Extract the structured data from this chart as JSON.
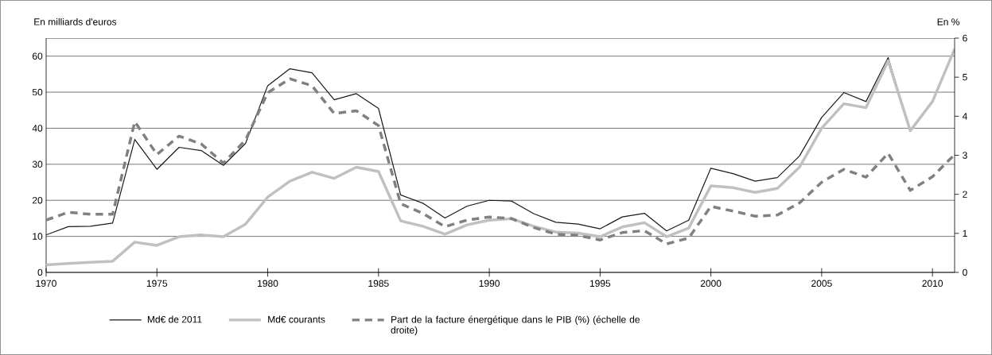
{
  "chart_data": {
    "type": "line",
    "ylabel": "En milliards d'euros",
    "y2label": "En %",
    "x": [
      1970,
      1971,
      1972,
      1973,
      1974,
      1975,
      1976,
      1977,
      1978,
      1979,
      1980,
      1981,
      1982,
      1983,
      1984,
      1985,
      1986,
      1987,
      1988,
      1989,
      1990,
      1991,
      1992,
      1993,
      1994,
      1995,
      1996,
      1997,
      1998,
      1999,
      2000,
      2001,
      2002,
      2003,
      2004,
      2005,
      2006,
      2007,
      2008,
      2009,
      2010,
      2011
    ],
    "series": [
      {
        "name": "Md€ de 2011",
        "color": "#1a1a1a",
        "line_style": "solid",
        "values": [
          10.4,
          12.7,
          12.8,
          13.7,
          36.9,
          28.6,
          34.7,
          33.8,
          29.7,
          35.8,
          51.8,
          56.5,
          55.4,
          47.9,
          49.6,
          45.5,
          21.5,
          19.2,
          15.1,
          18.4,
          20.0,
          19.8,
          16.3,
          13.9,
          13.4,
          12.1,
          15.4,
          16.4,
          11.5,
          14.5,
          28.9,
          27.4,
          25.3,
          26.3,
          32.3,
          43.0,
          49.9,
          47.4,
          59.6,
          39.3,
          null,
          null
        ]
      },
      {
        "name": "Md€ courants",
        "color": "#c0c0c0",
        "line_style": "solid",
        "values": [
          2.1,
          2.5,
          2.8,
          3.1,
          8.4,
          7.5,
          9.9,
          10.4,
          9.9,
          13.4,
          20.9,
          25.3,
          27.8,
          26.1,
          29.2,
          28.0,
          14.3,
          12.8,
          10.6,
          13.2,
          14.5,
          14.9,
          12.8,
          11.2,
          10.9,
          9.9,
          12.6,
          13.8,
          9.9,
          12.3,
          24.0,
          23.5,
          22.2,
          23.3,
          29.2,
          40.0,
          46.8,
          45.7,
          58.7,
          39.3,
          47.4,
          62.0
        ]
      },
      {
        "name": "Part de la facture énergétique dans le PIB (%) (échelle de droite)",
        "color": "#808080",
        "line_style": "dashed",
        "axis": "y2",
        "values": [
          1.34,
          1.54,
          1.49,
          1.49,
          3.86,
          3.02,
          3.49,
          3.29,
          2.8,
          3.39,
          4.6,
          4.96,
          4.78,
          4.07,
          4.14,
          3.76,
          1.76,
          1.51,
          1.17,
          1.34,
          1.42,
          1.38,
          1.15,
          0.98,
          0.95,
          0.83,
          1.02,
          1.07,
          0.73,
          0.88,
          1.69,
          1.57,
          1.44,
          1.47,
          1.78,
          2.31,
          2.64,
          2.44,
          3.05,
          2.1,
          2.45,
          3.02
        ]
      }
    ],
    "xlim": [
      1970,
      2011
    ],
    "xticks": [
      1970,
      1975,
      1980,
      1985,
      1990,
      1995,
      2000,
      2005,
      2010
    ],
    "ylim": [
      0,
      65
    ],
    "yticks": [
      0,
      10,
      20,
      30,
      40,
      50,
      60
    ],
    "y2lim": [
      0,
      6
    ],
    "y2ticks": [
      0,
      1,
      2,
      3,
      4,
      5,
      6
    ],
    "grid": "y",
    "legend": "bottom",
    "marker": "none"
  }
}
